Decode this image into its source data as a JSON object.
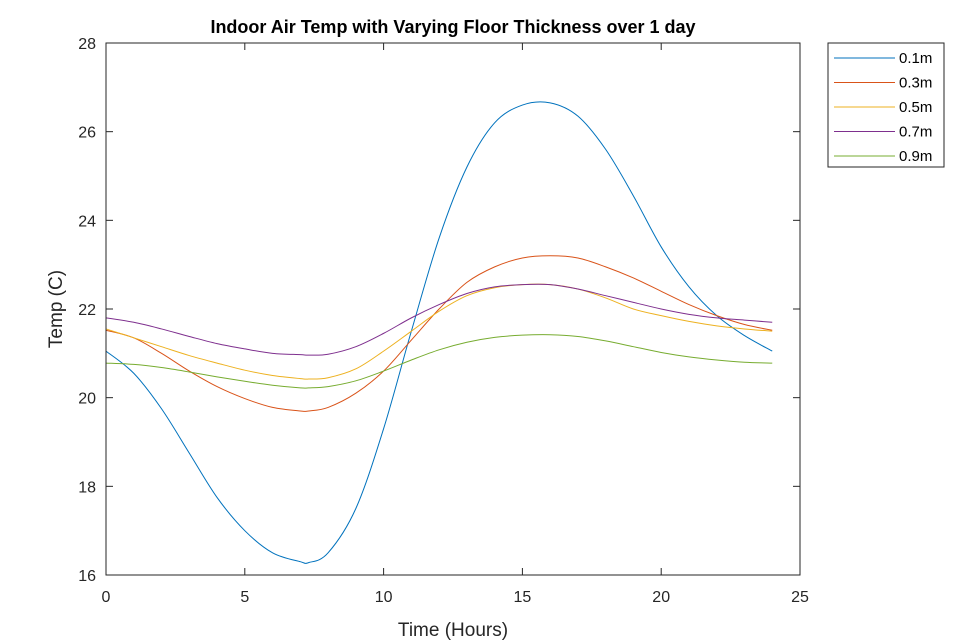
{
  "chart_data": {
    "type": "line",
    "title": "Indoor Air Temp with Varying Floor Thickness over 1 day",
    "xlabel": "Time (Hours)",
    "ylabel": "Temp (C)",
    "xlim": [
      0,
      25
    ],
    "ylim": [
      16,
      28
    ],
    "xticks": [
      0,
      5,
      10,
      15,
      20,
      25
    ],
    "yticks": [
      16,
      18,
      20,
      22,
      24,
      26,
      28
    ],
    "grid": false,
    "legend_position": "outside top-right",
    "x": [
      0,
      1,
      2,
      3,
      4,
      5,
      6,
      7,
      7.3,
      8,
      9,
      10,
      11,
      12,
      13,
      14,
      15,
      16,
      17,
      18,
      19,
      20,
      21,
      22,
      23,
      24
    ],
    "series": [
      {
        "name": "0.1m",
        "color": "#0072BD",
        "values": [
          21.05,
          20.55,
          19.75,
          18.75,
          17.75,
          17.0,
          16.5,
          16.3,
          16.28,
          16.5,
          17.5,
          19.3,
          21.5,
          23.6,
          25.2,
          26.2,
          26.6,
          26.65,
          26.35,
          25.6,
          24.55,
          23.4,
          22.5,
          21.85,
          21.4,
          21.05
        ]
      },
      {
        "name": "0.3m",
        "color": "#D95319",
        "values": [
          21.52,
          21.35,
          21.0,
          20.6,
          20.25,
          19.98,
          19.78,
          19.7,
          19.7,
          19.78,
          20.1,
          20.6,
          21.3,
          22.0,
          22.6,
          22.95,
          23.15,
          23.2,
          23.15,
          22.95,
          22.7,
          22.4,
          22.1,
          21.85,
          21.65,
          21.52
        ]
      },
      {
        "name": "0.5m",
        "color": "#EDB120",
        "values": [
          21.55,
          21.35,
          21.15,
          20.95,
          20.78,
          20.62,
          20.5,
          20.43,
          20.42,
          20.45,
          20.65,
          21.05,
          21.5,
          21.95,
          22.3,
          22.48,
          22.55,
          22.55,
          22.45,
          22.25,
          22.0,
          21.85,
          21.72,
          21.62,
          21.55,
          21.5
        ]
      },
      {
        "name": "0.7m",
        "color": "#7E2F8E",
        "values": [
          21.8,
          21.7,
          21.55,
          21.38,
          21.22,
          21.1,
          21.0,
          20.97,
          20.96,
          20.98,
          21.15,
          21.45,
          21.8,
          22.1,
          22.35,
          22.5,
          22.55,
          22.55,
          22.45,
          22.3,
          22.15,
          22.0,
          21.88,
          21.8,
          21.75,
          21.7
        ]
      },
      {
        "name": "0.9m",
        "color": "#77AC30",
        "values": [
          20.78,
          20.75,
          20.68,
          20.58,
          20.47,
          20.37,
          20.28,
          20.22,
          20.22,
          20.25,
          20.38,
          20.6,
          20.85,
          21.08,
          21.25,
          21.36,
          21.41,
          21.42,
          21.38,
          21.28,
          21.15,
          21.02,
          20.92,
          20.85,
          20.8,
          20.78
        ]
      }
    ]
  }
}
